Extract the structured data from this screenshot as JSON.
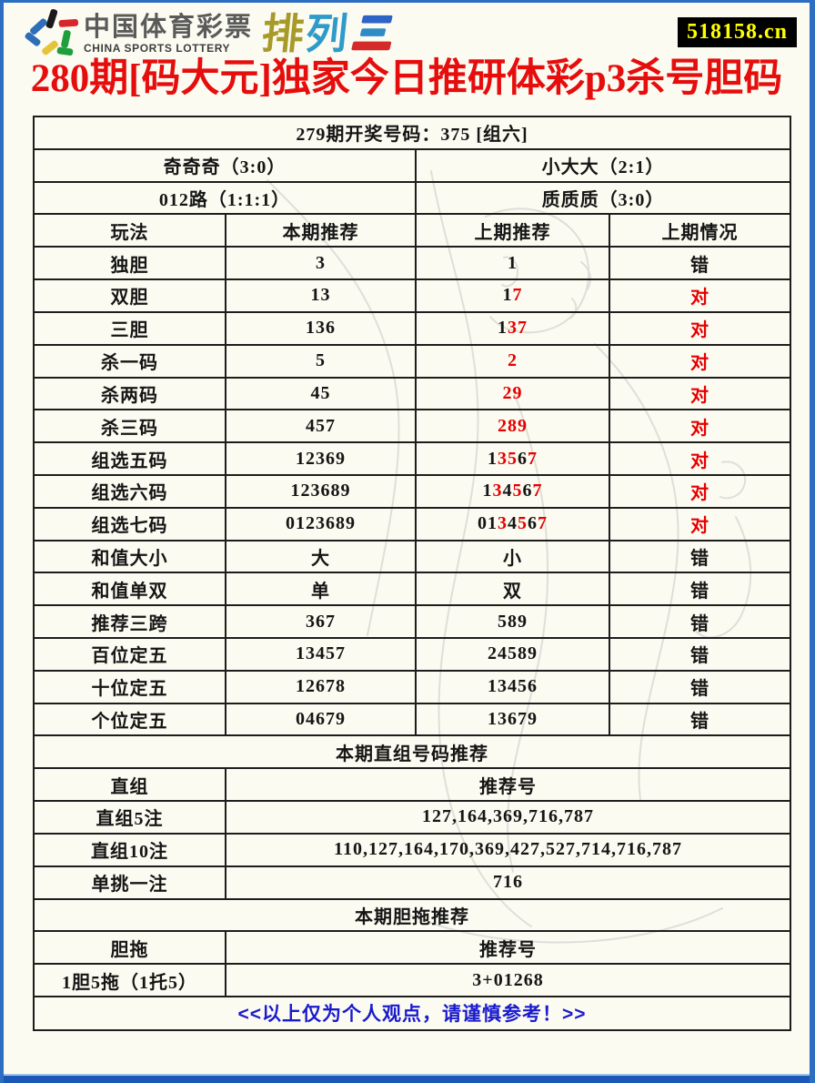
{
  "header": {
    "logo_cn": "中国体育彩票",
    "logo_en": "CHINA SPORTS LOTTERY",
    "brand_char_1": "排",
    "brand_char_2": "列",
    "brand_char_3": "三",
    "site_badge": "518158.cn"
  },
  "title": "280期[码大元]独家今日推研体彩p3杀号胆码",
  "colors": {
    "title_red": "#e60d0d",
    "result_red": "#e60000",
    "footer_blue": "#1a1ace",
    "badge_bg": "#000000",
    "badge_text": "#ffff00",
    "frame_blue": "#2d6dc2"
  },
  "table": {
    "rows": [
      {
        "cells": [
          {
            "t": "279期开奖号码：375 [组六]",
            "span": 4
          }
        ]
      },
      {
        "cells": [
          {
            "t": "奇奇奇（3:0）",
            "span": 2
          },
          {
            "t": "小大大（2:1）",
            "span": 2
          }
        ]
      },
      {
        "cells": [
          {
            "t": "012路（1:1:1）",
            "span": 2
          },
          {
            "t": "质质质（3:0）",
            "span": 2
          }
        ]
      },
      {
        "cells": [
          {
            "t": "玩法"
          },
          {
            "t": "本期推荐"
          },
          {
            "t": "上期推荐"
          },
          {
            "t": "上期情况"
          }
        ]
      },
      {
        "cells": [
          {
            "t": "独胆"
          },
          {
            "t": "3"
          },
          {
            "t": "1"
          },
          {
            "t": "错"
          }
        ]
      },
      {
        "cells": [
          {
            "t": "双胆"
          },
          {
            "t": "13"
          },
          {
            "seg": [
              {
                "t": "1"
              },
              {
                "t": "7",
                "c": "red"
              }
            ]
          },
          {
            "t": "对",
            "c": "red"
          }
        ]
      },
      {
        "cells": [
          {
            "t": "三胆"
          },
          {
            "t": "136"
          },
          {
            "seg": [
              {
                "t": "1"
              },
              {
                "t": "37",
                "c": "red"
              }
            ]
          },
          {
            "t": "对",
            "c": "red"
          }
        ]
      },
      {
        "cells": [
          {
            "t": "杀一码"
          },
          {
            "t": "5"
          },
          {
            "t": "2",
            "c": "red"
          },
          {
            "t": "对",
            "c": "red"
          }
        ]
      },
      {
        "cells": [
          {
            "t": "杀两码"
          },
          {
            "t": "45"
          },
          {
            "t": "29",
            "c": "red"
          },
          {
            "t": "对",
            "c": "red"
          }
        ]
      },
      {
        "cells": [
          {
            "t": "杀三码"
          },
          {
            "t": "457"
          },
          {
            "t": "289",
            "c": "red"
          },
          {
            "t": "对",
            "c": "red"
          }
        ]
      },
      {
        "cells": [
          {
            "t": "组选五码"
          },
          {
            "t": "12369"
          },
          {
            "seg": [
              {
                "t": "1"
              },
              {
                "t": "35",
                "c": "red"
              },
              {
                "t": "6"
              },
              {
                "t": "7",
                "c": "red"
              }
            ]
          },
          {
            "t": "对",
            "c": "red"
          }
        ]
      },
      {
        "cells": [
          {
            "t": "组选六码"
          },
          {
            "t": "123689"
          },
          {
            "seg": [
              {
                "t": "1"
              },
              {
                "t": "3",
                "c": "red"
              },
              {
                "t": "4"
              },
              {
                "t": "5",
                "c": "red"
              },
              {
                "t": "6"
              },
              {
                "t": "7",
                "c": "red"
              }
            ]
          },
          {
            "t": "对",
            "c": "red"
          }
        ]
      },
      {
        "cells": [
          {
            "t": "组选七码"
          },
          {
            "t": "0123689"
          },
          {
            "seg": [
              {
                "t": "01"
              },
              {
                "t": "3",
                "c": "red"
              },
              {
                "t": "4"
              },
              {
                "t": "5",
                "c": "red"
              },
              {
                "t": "6"
              },
              {
                "t": "7",
                "c": "red"
              }
            ]
          },
          {
            "t": "对",
            "c": "red"
          }
        ]
      },
      {
        "cells": [
          {
            "t": "和值大小"
          },
          {
            "t": "大"
          },
          {
            "t": "小"
          },
          {
            "t": "错"
          }
        ]
      },
      {
        "cells": [
          {
            "t": "和值单双"
          },
          {
            "t": "单"
          },
          {
            "t": "双"
          },
          {
            "t": "错"
          }
        ]
      },
      {
        "cells": [
          {
            "t": "推荐三跨"
          },
          {
            "t": "367"
          },
          {
            "t": "589"
          },
          {
            "t": "错"
          }
        ]
      },
      {
        "cells": [
          {
            "t": "百位定五"
          },
          {
            "t": "13457"
          },
          {
            "t": "24589"
          },
          {
            "t": "错"
          }
        ]
      },
      {
        "cells": [
          {
            "t": "十位定五"
          },
          {
            "t": "12678"
          },
          {
            "t": "13456"
          },
          {
            "t": "错"
          }
        ]
      },
      {
        "cells": [
          {
            "t": "个位定五"
          },
          {
            "t": "04679"
          },
          {
            "t": "13679"
          },
          {
            "t": "错"
          }
        ]
      },
      {
        "cells": [
          {
            "t": "本期直组号码推荐",
            "span": 4
          }
        ]
      },
      {
        "cells": [
          {
            "t": "直组"
          },
          {
            "t": "推荐号",
            "span": 3
          }
        ]
      },
      {
        "cells": [
          {
            "t": "直组5注"
          },
          {
            "t": "127,164,369,716,787",
            "span": 3
          }
        ]
      },
      {
        "cells": [
          {
            "t": "直组10注"
          },
          {
            "t": "110,127,164,170,369,427,527,714,716,787",
            "span": 3
          }
        ]
      },
      {
        "cells": [
          {
            "t": "单挑一注"
          },
          {
            "t": "716",
            "span": 3
          }
        ]
      },
      {
        "cells": [
          {
            "t": "本期胆拖推荐",
            "span": 4
          }
        ]
      },
      {
        "cells": [
          {
            "t": "胆拖"
          },
          {
            "t": "推荐号",
            "span": 3
          }
        ]
      },
      {
        "cells": [
          {
            "t": "1胆5拖（1托5）"
          },
          {
            "t": "3+01268",
            "span": 3
          }
        ]
      },
      {
        "cells": [
          {
            "t": "<<以上仅为个人观点，请谨慎参考！>>",
            "span": 4,
            "c": "blue"
          }
        ]
      }
    ]
  }
}
